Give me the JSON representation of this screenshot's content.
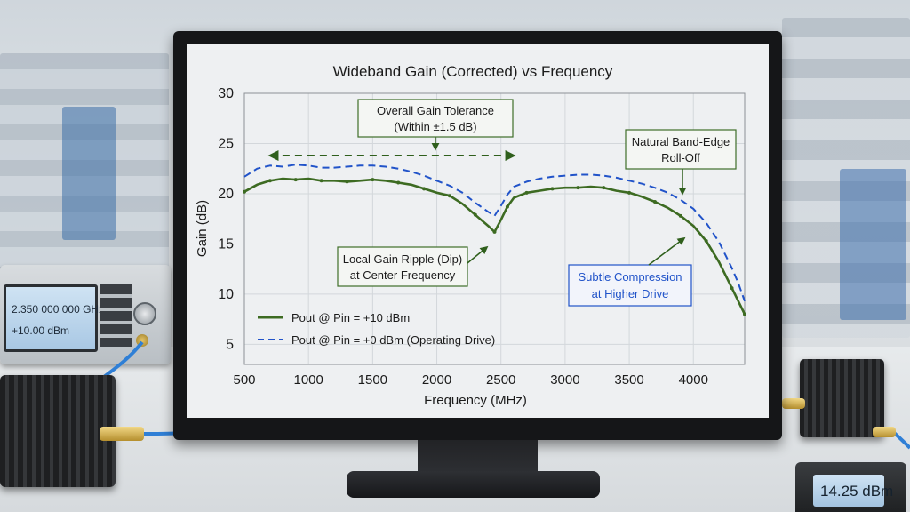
{
  "chart_data": {
    "type": "line",
    "title": "Wideband Gain (Corrected) vs Frequency",
    "xlabel": "Frequency (MHz)",
    "ylabel": "Gain (dB)",
    "xlim": [
      500,
      4400
    ],
    "ylim": [
      3,
      30
    ],
    "xticks": [
      500,
      1000,
      1500,
      2000,
      2500,
      3000,
      3500,
      4000
    ],
    "yticks": [
      5,
      10,
      15,
      20,
      25,
      30
    ],
    "grid": true,
    "legend_position": "bottom-left",
    "series": [
      {
        "name": "Pout @ Pin = +10 dBm",
        "style": "solid",
        "color": "#3d6b22",
        "x": [
          500,
          600,
          700,
          800,
          900,
          1000,
          1100,
          1200,
          1300,
          1400,
          1500,
          1600,
          1700,
          1800,
          1900,
          2000,
          2100,
          2200,
          2300,
          2400,
          2450,
          2500,
          2550,
          2600,
          2700,
          2800,
          2900,
          3000,
          3100,
          3200,
          3300,
          3400,
          3500,
          3600,
          3700,
          3800,
          3900,
          4000,
          4100,
          4200,
          4300,
          4350,
          4400
        ],
        "y": [
          20.2,
          20.9,
          21.3,
          21.5,
          21.4,
          21.5,
          21.3,
          21.3,
          21.2,
          21.3,
          21.4,
          21.3,
          21.1,
          20.9,
          20.5,
          20.1,
          19.8,
          19.0,
          17.9,
          16.8,
          16.2,
          17.4,
          18.7,
          19.6,
          20.1,
          20.3,
          20.5,
          20.6,
          20.6,
          20.7,
          20.6,
          20.3,
          20.1,
          19.7,
          19.2,
          18.6,
          17.8,
          16.8,
          15.3,
          13.2,
          10.6,
          9.3,
          8.0
        ]
      },
      {
        "name": "Pout @ Pin = +0 dBm (Operating Drive)",
        "style": "dashed",
        "color": "#2153c9",
        "x": [
          500,
          600,
          700,
          800,
          900,
          1000,
          1100,
          1200,
          1300,
          1400,
          1500,
          1600,
          1700,
          1800,
          1900,
          2000,
          2100,
          2200,
          2300,
          2400,
          2450,
          2500,
          2550,
          2600,
          2700,
          2800,
          2900,
          3000,
          3100,
          3200,
          3300,
          3400,
          3500,
          3600,
          3700,
          3800,
          3900,
          4000,
          4100,
          4200,
          4300,
          4350,
          4400
        ],
        "y": [
          21.7,
          22.5,
          22.8,
          22.7,
          22.9,
          22.8,
          22.6,
          22.6,
          22.7,
          22.8,
          22.8,
          22.7,
          22.5,
          22.2,
          21.8,
          21.3,
          20.8,
          20.1,
          19.1,
          18.2,
          17.8,
          18.8,
          19.9,
          20.7,
          21.2,
          21.5,
          21.7,
          21.8,
          21.9,
          21.9,
          21.8,
          21.6,
          21.3,
          21.0,
          20.6,
          20.1,
          19.4,
          18.5,
          17.1,
          15.2,
          12.6,
          11.1,
          9.3
        ]
      }
    ],
    "annotations": [
      {
        "text": [
          "Overall Gain Tolerance",
          "(Within ±1.5 dB)"
        ],
        "style": "green-box"
      },
      {
        "text": [
          "Natural Band-Edge",
          "Roll-Off"
        ],
        "style": "green-box"
      },
      {
        "text": [
          "Local Gain Ripple (Dip)",
          "at Center Frequency"
        ],
        "style": "green-box"
      },
      {
        "text": [
          "Subtle Compression",
          "at Higher Drive"
        ],
        "style": "blue-box"
      }
    ],
    "tolerance_arrow": {
      "x_range": [
        700,
        2600
      ],
      "note": "Overall Gain Tolerance"
    }
  },
  "instruments": {
    "siggen_freq": "2.350 000 000 GHz",
    "siggen_power": "+10.00 dBm",
    "meter_value": "14.25 dBm"
  }
}
